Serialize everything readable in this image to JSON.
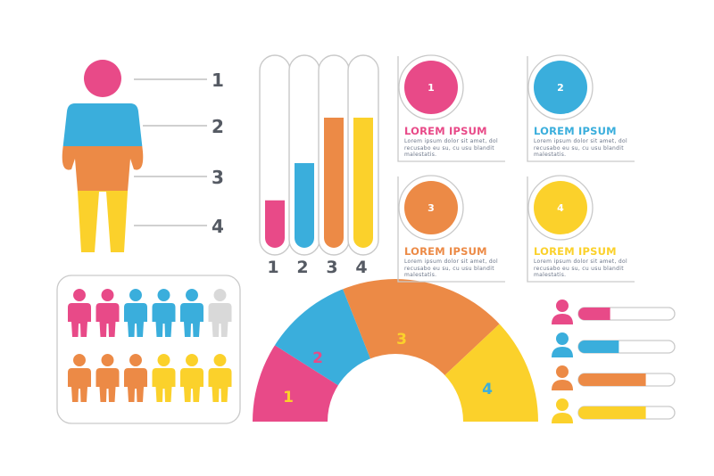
{
  "colors": {
    "pink": "#e84a88",
    "blue": "#3aaedc",
    "orange": "#ec8a46",
    "yellow": "#fbd12b",
    "gray": "#d9d9d9",
    "outline": "#c9c9c9"
  },
  "person_figure": {
    "labels": [
      "1",
      "2",
      "3",
      "4"
    ],
    "icon": "person-silhouette-icon"
  },
  "chart_data": [
    {
      "type": "bar",
      "categories": [
        "1",
        "2",
        "3",
        "4"
      ],
      "values": [
        23,
        41,
        63,
        63
      ],
      "ylim": [
        0,
        100
      ],
      "colors": [
        "#e84a88",
        "#3aaedc",
        "#ec8a46",
        "#fbd12b"
      ],
      "title": "",
      "xlabel": "",
      "ylabel": "",
      "grid": false
    },
    {
      "type": "pie",
      "variant": "half-donut",
      "categories": [
        "1",
        "2",
        "3",
        "4"
      ],
      "values": [
        18,
        20,
        38,
        24
      ],
      "colors": [
        "#e84a88",
        "#3aaedc",
        "#ec8a46",
        "#fbd12b"
      ],
      "label_colors": [
        "#fbd12b",
        "#e84a88",
        "#fbd12b",
        "#3aaedc"
      ]
    },
    {
      "type": "bar",
      "orientation": "horizontal",
      "categories": [
        "1",
        "2",
        "3",
        "4"
      ],
      "values": [
        0.33,
        0.42,
        0.7,
        0.7
      ],
      "colors": [
        "#e84a88",
        "#3aaedc",
        "#ec8a46",
        "#fbd12b"
      ],
      "icon": "person-avatar-icon"
    }
  ],
  "cards": [
    {
      "number": "1",
      "title": "LOREM IPSUM",
      "body": "Lorem ipsum dolor sit amet, dol recusabo eu su, cu usu blandit malestatis.",
      "color": "#e84a88"
    },
    {
      "number": "2",
      "title": "LOREM IPSUM",
      "body": "Lorem ipsum dolor sit amet, dol recusabo eu su, cu usu blandit malestatis.",
      "color": "#3aaedc"
    },
    {
      "number": "3",
      "title": "LOREM IPSUM",
      "body": "Lorem ipsum dolor sit amet, dol recusabo eu su, cu usu blandit malestatis.",
      "color": "#ec8a46"
    },
    {
      "number": "4",
      "title": "LOREM IPSUM",
      "body": "Lorem ipsum dolor sit amet, dol recusabo eu su, cu usu blandit malestatis.",
      "color": "#fbd12b"
    }
  ],
  "people_grid": {
    "icon": "person-icon",
    "rows": [
      [
        "#e84a88",
        "#e84a88",
        "#3aaedc",
        "#3aaedc",
        "#3aaedc",
        "#d9d9d9"
      ],
      [
        "#ec8a46",
        "#ec8a46",
        "#ec8a46",
        "#fbd12b",
        "#fbd12b",
        "#fbd12b"
      ]
    ]
  }
}
